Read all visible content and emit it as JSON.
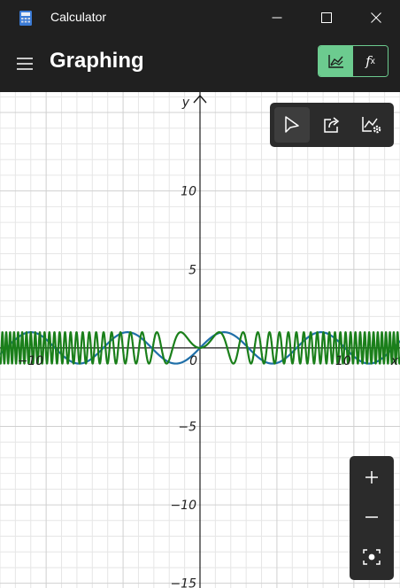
{
  "window": {
    "title": "Calculator",
    "icon": "calculator-icon",
    "controls": [
      "minimize-icon",
      "maximize-icon",
      "close-icon"
    ]
  },
  "header": {
    "menu_icon": "hamburger-menu-icon",
    "title": "Graphing",
    "mode_toggle": {
      "graph_icon": "graph-view-icon",
      "function_label": "f",
      "function_subscript": "x",
      "active": "graph"
    }
  },
  "graph": {
    "x_axis_label": "x",
    "y_axis_label": "y",
    "x_tick_labels": [
      "−10",
      "0",
      "10"
    ],
    "y_tick_labels": [
      "10",
      "5",
      "−5",
      "−10",
      "−15"
    ],
    "x_ticks": [
      -10,
      0,
      10
    ],
    "y_ticks": [
      10,
      5,
      -5,
      -10,
      -15
    ],
    "x_range": [
      -13,
      13
    ],
    "y_range": [
      -15.3,
      16.3
    ],
    "grid": true,
    "series_colors": {
      "blue": "#1f6fa8",
      "green": "#1a7f1a"
    }
  },
  "graph_toolbar": {
    "items": [
      "select-cursor-icon",
      "share-icon",
      "graph-settings-icon"
    ],
    "active": "select-cursor-icon"
  },
  "zoom_panel": {
    "items": [
      "zoom-in-icon",
      "zoom-out-icon",
      "reset-view-icon"
    ]
  },
  "colors": {
    "titlebar_bg": "#202020",
    "accent": "#6ccb8f",
    "toolbar_bg": "#2b2b2b",
    "grid_minor": "#e6e6e6",
    "grid_major": "#d0d0d0"
  }
}
